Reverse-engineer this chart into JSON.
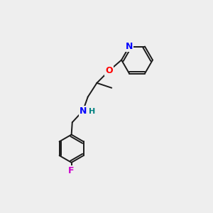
{
  "bg_color": "#eeeeee",
  "line_color": "#1a1a1a",
  "N_color": "#0000ff",
  "O_color": "#ff0000",
  "F_color": "#cc00cc",
  "H_color": "#008080",
  "lw": 1.4,
  "figsize": [
    3.0,
    3.0
  ],
  "dpi": 100,
  "xlim": [
    0,
    10
  ],
  "ylim": [
    0,
    10
  ]
}
